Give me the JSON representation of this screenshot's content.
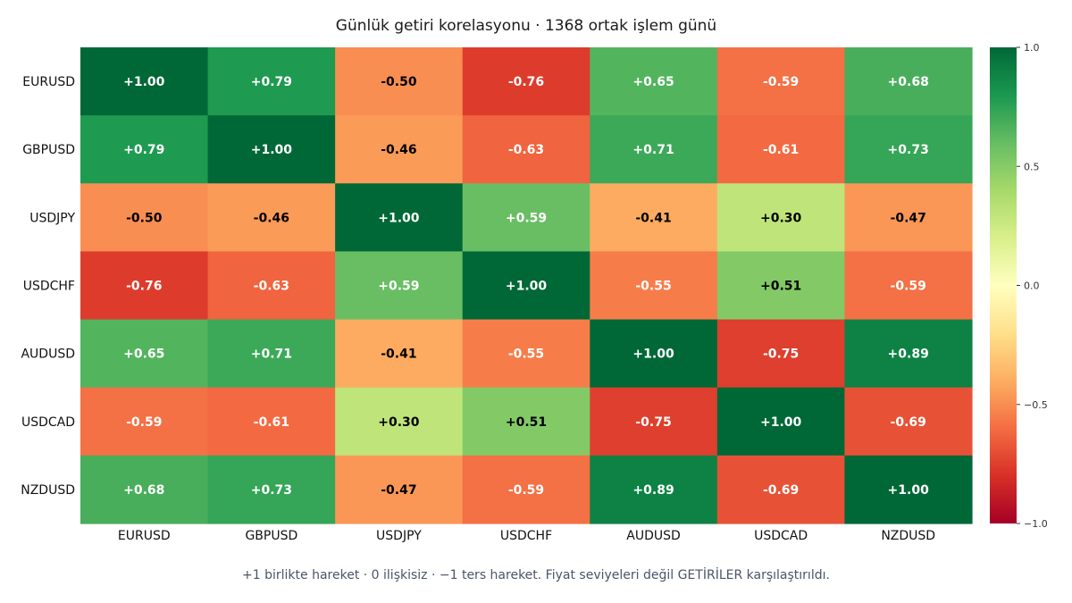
{
  "chart_data": {
    "type": "heatmap",
    "title": "Günlük getiri korelasyonu · 1368 ortak işlem günü",
    "x_categories": [
      "EURUSD",
      "GBPUSD",
      "USDJPY",
      "USDCHF",
      "AUDUSD",
      "USDCAD",
      "NZDUSD"
    ],
    "y_categories": [
      "EURUSD",
      "GBPUSD",
      "USDJPY",
      "USDCHF",
      "AUDUSD",
      "USDCAD",
      "NZDUSD"
    ],
    "values": [
      [
        1.0,
        0.79,
        -0.5,
        -0.76,
        0.65,
        -0.59,
        0.68
      ],
      [
        0.79,
        1.0,
        -0.46,
        -0.63,
        0.71,
        -0.61,
        0.73
      ],
      [
        -0.5,
        -0.46,
        1.0,
        0.59,
        -0.41,
        0.3,
        -0.47
      ],
      [
        -0.76,
        -0.63,
        0.59,
        1.0,
        -0.55,
        0.51,
        -0.59
      ],
      [
        0.65,
        0.71,
        -0.41,
        -0.55,
        1.0,
        -0.75,
        0.89
      ],
      [
        -0.59,
        -0.61,
        0.3,
        0.51,
        -0.75,
        1.0,
        -0.69
      ],
      [
        0.68,
        0.73,
        -0.47,
        -0.59,
        0.89,
        -0.69,
        1.0
      ]
    ],
    "cell_labels": [
      [
        "+1.00",
        "+0.79",
        "-0.50",
        "-0.76",
        "+0.65",
        "-0.59",
        "+0.68"
      ],
      [
        "+0.79",
        "+1.00",
        "-0.46",
        "-0.63",
        "+0.71",
        "-0.61",
        "+0.73"
      ],
      [
        "-0.50",
        "-0.46",
        "+1.00",
        "+0.59",
        "-0.41",
        "+0.30",
        "-0.47"
      ],
      [
        "-0.76",
        "-0.63",
        "+0.59",
        "+1.00",
        "-0.55",
        "+0.51",
        "-0.59"
      ],
      [
        "+0.65",
        "+0.71",
        "-0.41",
        "-0.55",
        "+1.00",
        "-0.75",
        "+0.89"
      ],
      [
        "-0.59",
        "-0.61",
        "+0.30",
        "+0.51",
        "-0.75",
        "+1.00",
        "-0.69"
      ],
      [
        "+0.68",
        "+0.73",
        "-0.47",
        "-0.59",
        "+0.89",
        "-0.69",
        "+1.00"
      ]
    ],
    "colorscale": "RdYlGn",
    "color_range": [
      -1.0,
      1.0
    ],
    "colorbar_ticks": [
      1.0,
      0.5,
      0.0,
      -0.5,
      -1.0
    ],
    "colorbar_tick_labels": [
      "1.0",
      "0.5",
      "0.0",
      "−0.5",
      "−1.0"
    ],
    "grid": false,
    "legend": "colorbar-right"
  },
  "footnote": "+1 birlikte hareket · 0 ilişkisiz · −1 ters hareket. Fiyat seviyeleri değil GETİRİLER karşılaştırıldı."
}
